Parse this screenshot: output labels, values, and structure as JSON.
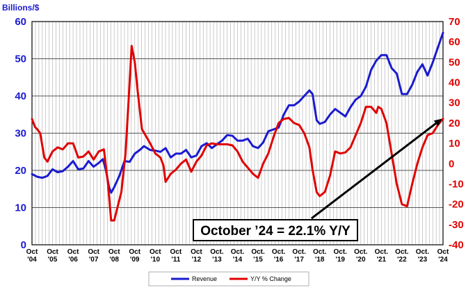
{
  "chart_data": {
    "type": "line",
    "ylabel_left": "Billions/$",
    "ylim_left": [
      0,
      60
    ],
    "yticks_left": [
      "0",
      "10",
      "20",
      "30",
      "40",
      "50",
      "60"
    ],
    "ylim_right": [
      -40,
      70
    ],
    "yticks_right": [
      "-40",
      "-30",
      "-20",
      "-10",
      "0",
      "10",
      "20",
      "30",
      "40",
      "50",
      "60",
      "70"
    ],
    "x_range": [
      2004.75,
      2024.75
    ],
    "x_tick_labels": [
      {
        "top": "Oct",
        "bottom": "'04"
      },
      {
        "top": "Oct",
        "bottom": "'05"
      },
      {
        "top": "Oct",
        "bottom": "'06"
      },
      {
        "top": "Oct",
        "bottom": "'07"
      },
      {
        "top": "Oct",
        "bottom": "'08"
      },
      {
        "top": "Oct",
        "bottom": "'09"
      },
      {
        "top": "Oct",
        "bottom": "'10"
      },
      {
        "top": "Oct",
        "bottom": "'11"
      },
      {
        "top": "Oct",
        "bottom": "'12"
      },
      {
        "top": "Oct.",
        "bottom": "'13"
      },
      {
        "top": "Oct.",
        "bottom": "'14"
      },
      {
        "top": "Oct.",
        "bottom": "'15"
      },
      {
        "top": "Oct.",
        "bottom": "'16"
      },
      {
        "top": "Oct.",
        "bottom": "'17"
      },
      {
        "top": "Oct.",
        "bottom": "'18"
      },
      {
        "top": "Oct.",
        "bottom": "'19"
      },
      {
        "top": "Oct.",
        "bottom": "'20"
      },
      {
        "top": "Oct.",
        "bottom": "'21"
      },
      {
        "top": "Oct.",
        "bottom": "'22"
      },
      {
        "top": "Oct.",
        "bottom": "'23"
      },
      {
        "top": "Oct",
        "bottom": "'24"
      }
    ],
    "grid": "vertical-monthly-and-horizontal",
    "legend_position": "bottom-center",
    "annotation": "October ’24 = 22.1% Y/Y",
    "trend_arrow": {
      "from": [
        2018.35,
        -27
      ],
      "to": [
        2024.7,
        22.1
      ],
      "axis": "right"
    },
    "series": [
      {
        "name": "Revenue",
        "axis": "left",
        "color": "#1a1ad0",
        "points": [
          [
            2004.75,
            19.0
          ],
          [
            2005.0,
            18.3
          ],
          [
            2005.25,
            18.0
          ],
          [
            2005.5,
            18.5
          ],
          [
            2005.75,
            20.3
          ],
          [
            2006.0,
            19.5
          ],
          [
            2006.25,
            19.8
          ],
          [
            2006.5,
            21.0
          ],
          [
            2006.75,
            22.5
          ],
          [
            2007.0,
            20.3
          ],
          [
            2007.25,
            20.5
          ],
          [
            2007.5,
            22.5
          ],
          [
            2007.75,
            21.0
          ],
          [
            2008.0,
            22.0
          ],
          [
            2008.2,
            23.0
          ],
          [
            2008.35,
            20.0
          ],
          [
            2008.5,
            15.5
          ],
          [
            2008.6,
            14.0
          ],
          [
            2008.75,
            15.5
          ],
          [
            2009.0,
            18.5
          ],
          [
            2009.25,
            22.5
          ],
          [
            2009.5,
            22.3
          ],
          [
            2009.75,
            24.5
          ],
          [
            2010.0,
            25.5
          ],
          [
            2010.2,
            26.5
          ],
          [
            2010.5,
            25.5
          ],
          [
            2010.75,
            25.3
          ],
          [
            2011.0,
            25.0
          ],
          [
            2011.25,
            26.0
          ],
          [
            2011.5,
            23.5
          ],
          [
            2011.75,
            24.5
          ],
          [
            2012.0,
            24.5
          ],
          [
            2012.25,
            25.5
          ],
          [
            2012.5,
            23.5
          ],
          [
            2012.75,
            24.0
          ],
          [
            2013.0,
            26.5
          ],
          [
            2013.25,
            27.3
          ],
          [
            2013.5,
            26.0
          ],
          [
            2013.75,
            27.0
          ],
          [
            2014.0,
            28.0
          ],
          [
            2014.25,
            29.5
          ],
          [
            2014.5,
            29.3
          ],
          [
            2014.75,
            28.0
          ],
          [
            2015.0,
            28.0
          ],
          [
            2015.25,
            28.5
          ],
          [
            2015.5,
            26.5
          ],
          [
            2015.75,
            26.0
          ],
          [
            2016.0,
            27.5
          ],
          [
            2016.25,
            30.5
          ],
          [
            2016.5,
            31.0
          ],
          [
            2016.75,
            31.5
          ],
          [
            2017.0,
            35.0
          ],
          [
            2017.25,
            37.5
          ],
          [
            2017.5,
            37.5
          ],
          [
            2017.75,
            38.5
          ],
          [
            2018.0,
            40.0
          ],
          [
            2018.25,
            41.5
          ],
          [
            2018.4,
            40.5
          ],
          [
            2018.6,
            33.5
          ],
          [
            2018.75,
            32.5
          ],
          [
            2019.0,
            33.0
          ],
          [
            2019.25,
            35.0
          ],
          [
            2019.5,
            36.5
          ],
          [
            2019.75,
            35.5
          ],
          [
            2020.0,
            34.5
          ],
          [
            2020.25,
            37.0
          ],
          [
            2020.5,
            39.0
          ],
          [
            2020.75,
            40.0
          ],
          [
            2021.0,
            42.5
          ],
          [
            2021.25,
            47.0
          ],
          [
            2021.5,
            49.5
          ],
          [
            2021.75,
            51.0
          ],
          [
            2022.0,
            51.0
          ],
          [
            2022.25,
            47.5
          ],
          [
            2022.5,
            46.0
          ],
          [
            2022.75,
            40.5
          ],
          [
            2023.0,
            40.5
          ],
          [
            2023.25,
            43.0
          ],
          [
            2023.5,
            46.5
          ],
          [
            2023.75,
            48.5
          ],
          [
            2024.0,
            45.5
          ],
          [
            2024.25,
            49.0
          ],
          [
            2024.5,
            53.0
          ],
          [
            2024.75,
            57.0
          ]
        ]
      },
      {
        "name": "Y/Y % Change",
        "axis": "right",
        "color": "#e00000",
        "points": [
          [
            2004.75,
            22.0
          ],
          [
            2004.9,
            18.0
          ],
          [
            2005.0,
            17.0
          ],
          [
            2005.15,
            15.0
          ],
          [
            2005.35,
            3.0
          ],
          [
            2005.5,
            1.0
          ],
          [
            2005.75,
            6.0
          ],
          [
            2006.0,
            8.0
          ],
          [
            2006.25,
            7.0
          ],
          [
            2006.5,
            10.0
          ],
          [
            2006.75,
            10.0
          ],
          [
            2007.0,
            3.0
          ],
          [
            2007.25,
            3.5
          ],
          [
            2007.5,
            6.0
          ],
          [
            2007.75,
            2.0
          ],
          [
            2008.0,
            6.0
          ],
          [
            2008.25,
            7.0
          ],
          [
            2008.45,
            -10.0
          ],
          [
            2008.6,
            -28.0
          ],
          [
            2008.75,
            -28.0
          ],
          [
            2008.9,
            -22.0
          ],
          [
            2009.1,
            -14.0
          ],
          [
            2009.3,
            5.0
          ],
          [
            2009.5,
            40.0
          ],
          [
            2009.6,
            58.0
          ],
          [
            2009.75,
            50.0
          ],
          [
            2009.9,
            35.0
          ],
          [
            2010.1,
            17.0
          ],
          [
            2010.3,
            13.5
          ],
          [
            2010.5,
            10.0
          ],
          [
            2010.75,
            5.0
          ],
          [
            2011.0,
            3.0
          ],
          [
            2011.15,
            -1.0
          ],
          [
            2011.25,
            -9.0
          ],
          [
            2011.5,
            -5.0
          ],
          [
            2011.75,
            -3.0
          ],
          [
            2012.0,
            0.0
          ],
          [
            2012.25,
            2.0
          ],
          [
            2012.5,
            -4.0
          ],
          [
            2012.75,
            1.0
          ],
          [
            2013.0,
            4.0
          ],
          [
            2013.25,
            9.0
          ],
          [
            2013.5,
            10.0
          ],
          [
            2013.75,
            9.5
          ],
          [
            2014.0,
            9.5
          ],
          [
            2014.25,
            9.5
          ],
          [
            2014.5,
            9.0
          ],
          [
            2014.75,
            6.0
          ],
          [
            2015.0,
            1.0
          ],
          [
            2015.25,
            -2.0
          ],
          [
            2015.5,
            -5.0
          ],
          [
            2015.75,
            -7.0
          ],
          [
            2016.0,
            0.0
          ],
          [
            2016.25,
            5.0
          ],
          [
            2016.5,
            13.0
          ],
          [
            2016.75,
            20.0
          ],
          [
            2017.0,
            22.0
          ],
          [
            2017.25,
            22.5
          ],
          [
            2017.5,
            20.0
          ],
          [
            2017.75,
            19.0
          ],
          [
            2018.0,
            15.0
          ],
          [
            2018.25,
            8.0
          ],
          [
            2018.4,
            -3.0
          ],
          [
            2018.6,
            -14.0
          ],
          [
            2018.75,
            -16.0
          ],
          [
            2019.0,
            -14.0
          ],
          [
            2019.25,
            -6.0
          ],
          [
            2019.5,
            6.0
          ],
          [
            2019.75,
            5.0
          ],
          [
            2020.0,
            5.5
          ],
          [
            2020.25,
            8.0
          ],
          [
            2020.5,
            14.0
          ],
          [
            2020.75,
            20.0
          ],
          [
            2021.0,
            28.0
          ],
          [
            2021.25,
            28.0
          ],
          [
            2021.5,
            25.0
          ],
          [
            2021.6,
            28.0
          ],
          [
            2021.75,
            27.0
          ],
          [
            2022.0,
            20.0
          ],
          [
            2022.25,
            5.0
          ],
          [
            2022.5,
            -10.0
          ],
          [
            2022.75,
            -20.0
          ],
          [
            2023.0,
            -21.0
          ],
          [
            2023.25,
            -10.0
          ],
          [
            2023.5,
            0.0
          ],
          [
            2023.75,
            8.0
          ],
          [
            2024.0,
            14.0
          ],
          [
            2024.25,
            15.0
          ],
          [
            2024.5,
            19.0
          ],
          [
            2024.75,
            22.1
          ]
        ]
      }
    ]
  }
}
